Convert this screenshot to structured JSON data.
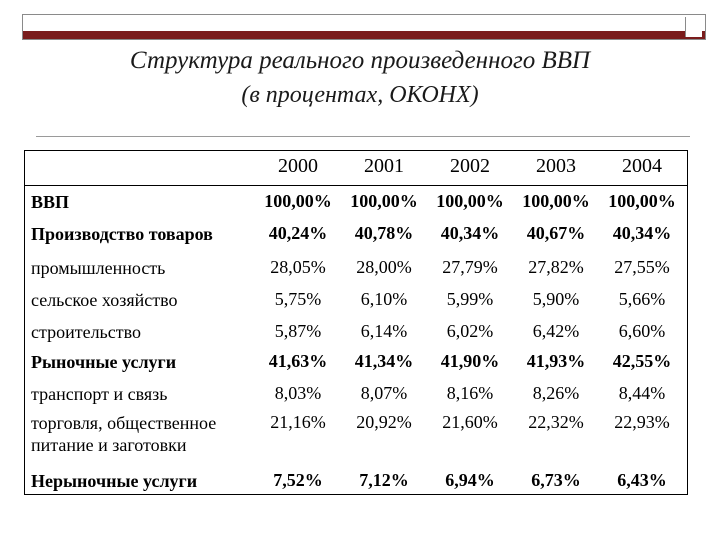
{
  "title": "Структура реального произведенного ВВП",
  "subtitle": "(в процентах, ОКОНХ)",
  "table": {
    "years": [
      "2000",
      "2001",
      "2002",
      "2003",
      "2004"
    ],
    "rows": [
      {
        "label": "ВВП",
        "bold": true,
        "values": [
          "100,00%",
          "100,00%",
          "100,00%",
          "100,00%",
          "100,00%"
        ]
      },
      {
        "label": "Производство товаров",
        "bold": true,
        "values": [
          "40,24%",
          "40,78%",
          "40,34%",
          "40,67%",
          "40,34%"
        ]
      },
      {
        "label": "промышленность",
        "bold": false,
        "values": [
          "28,05%",
          "28,00%",
          "27,79%",
          "27,82%",
          "27,55%"
        ]
      },
      {
        "label": "сельское хозяйство",
        "bold": false,
        "values": [
          "5,75%",
          "6,10%",
          "5,99%",
          "5,90%",
          "5,66%"
        ]
      },
      {
        "label": "строительство",
        "bold": false,
        "values": [
          "5,87%",
          "6,14%",
          "6,02%",
          "6,42%",
          "6,60%"
        ]
      },
      {
        "label": "Рыночные  услуги",
        "bold": true,
        "values": [
          "41,63%",
          "41,34%",
          "41,90%",
          "41,93%",
          "42,55%"
        ]
      },
      {
        "label": "транспорт и связь",
        "bold": false,
        "values": [
          "8,03%",
          "8,07%",
          "8,16%",
          "8,26%",
          "8,44%"
        ]
      },
      {
        "label": "торговля, общественное питание и заготовки",
        "bold": false,
        "values": [
          "21,16%",
          "20,92%",
          "21,60%",
          "22,32%",
          "22,93%"
        ]
      },
      {
        "label": "Нерыночные услуги",
        "bold": true,
        "values": [
          "7,52%",
          "7,12%",
          "6,94%",
          "6,73%",
          "6,43%"
        ]
      }
    ]
  }
}
